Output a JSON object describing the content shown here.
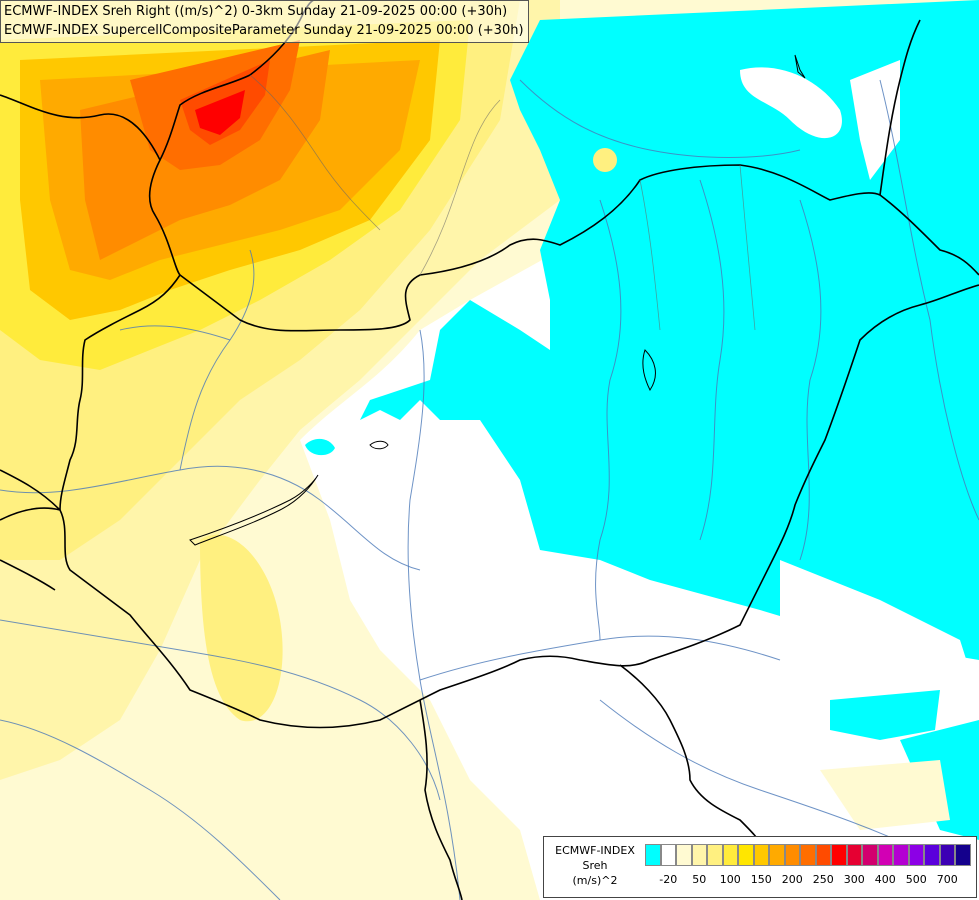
{
  "title": {
    "line1": "ECMWF-INDEX Sreh Right ((m/s)^2) 0-3km Sunday 21-09-2025 00:00 (+30h)",
    "line2": "ECMWF-INDEX SupercellCompositeParameter Sunday 21-09-2025 00:00 (+30h)"
  },
  "legend": {
    "model": "ECMWF-INDEX",
    "field": "Sreh",
    "unit": "(m/s)^2",
    "colors": [
      "#00ffff",
      "#ffffff",
      "#fffad2",
      "#fff5aa",
      "#fff080",
      "#ffeb3c",
      "#ffe600",
      "#ffc800",
      "#ffaa00",
      "#ff8c00",
      "#ff6e00",
      "#ff4b00",
      "#ff0000",
      "#e60032",
      "#d2006e",
      "#d200b4",
      "#b400d2",
      "#8c00e6",
      "#5a00dc",
      "#3c00b4",
      "#14008c"
    ],
    "tick_labels": [
      "-20",
      "50",
      "100",
      "150",
      "200",
      "250",
      "300",
      "400",
      "500",
      "700"
    ]
  }
}
